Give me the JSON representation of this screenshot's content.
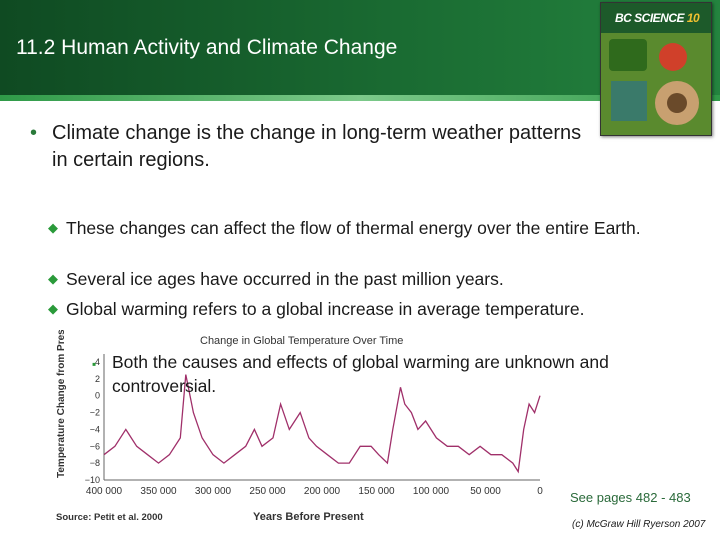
{
  "header": {
    "title": "11.2 Human Activity and Climate Change",
    "cover_brand": "BC SCIENCE",
    "cover_number": "10"
  },
  "bullet": "Climate change is the change in long-term weather patterns\nin certain regions.",
  "sub_bullets": [
    "These changes can affect the flow of thermal energy over the entire Earth.",
    "Several ice ages have occurred in the past million years.",
    "Global warming refers to a global increase in average temperature."
  ],
  "sub_sub_bullet": "Both the causes and effects of global warming are unknown and\ncontroversial.",
  "chart_data": {
    "type": "line",
    "title": "Change in Global Temperature Over Time",
    "ylabel": "Temperature Change from Present (°C)",
    "xlabel": "Years Before Present",
    "source": "Source: Petit et al. 2000",
    "ylim": [
      -10,
      4
    ],
    "xlim": [
      400000,
      0
    ],
    "yticks": [
      "4",
      "2",
      "0",
      "−2",
      "−4",
      "−6",
      "−8",
      "−10"
    ],
    "xticks": [
      "400 000",
      "350 000",
      "300 000",
      "250 000",
      "200 000",
      "150 000",
      "100 000",
      "50 000",
      "0"
    ],
    "series": [
      {
        "color": "#a0306a",
        "x": [
          400000,
          390000,
          380000,
          370000,
          360000,
          350000,
          340000,
          330000,
          325000,
          318000,
          310000,
          300000,
          290000,
          280000,
          270000,
          262000,
          255000,
          245000,
          238000,
          230000,
          220000,
          212000,
          205000,
          195000,
          185000,
          175000,
          165000,
          155000,
          148000,
          140000,
          135000,
          128000,
          124000,
          118000,
          112000,
          105000,
          95000,
          85000,
          75000,
          65000,
          55000,
          45000,
          35000,
          25000,
          20000,
          15000,
          10000,
          5000,
          0
        ],
        "y": [
          -7,
          -6,
          -4,
          -6,
          -7,
          -8,
          -7,
          -5,
          2.5,
          -2,
          -5,
          -7,
          -8,
          -7,
          -6,
          -4,
          -6,
          -5,
          -1,
          -4,
          -2,
          -5,
          -6,
          -7,
          -8,
          -8,
          -6,
          -6,
          -7,
          -8,
          -4,
          1,
          -1,
          -2,
          -4,
          -3,
          -5,
          -6,
          -6,
          -7,
          -6,
          -7,
          -7,
          -8,
          -9,
          -4,
          -1,
          -2,
          0
        ]
      }
    ]
  },
  "footer": {
    "see_pages": "See pages 482 - 483",
    "copyright": "(c) McGraw Hill Ryerson 2007"
  }
}
